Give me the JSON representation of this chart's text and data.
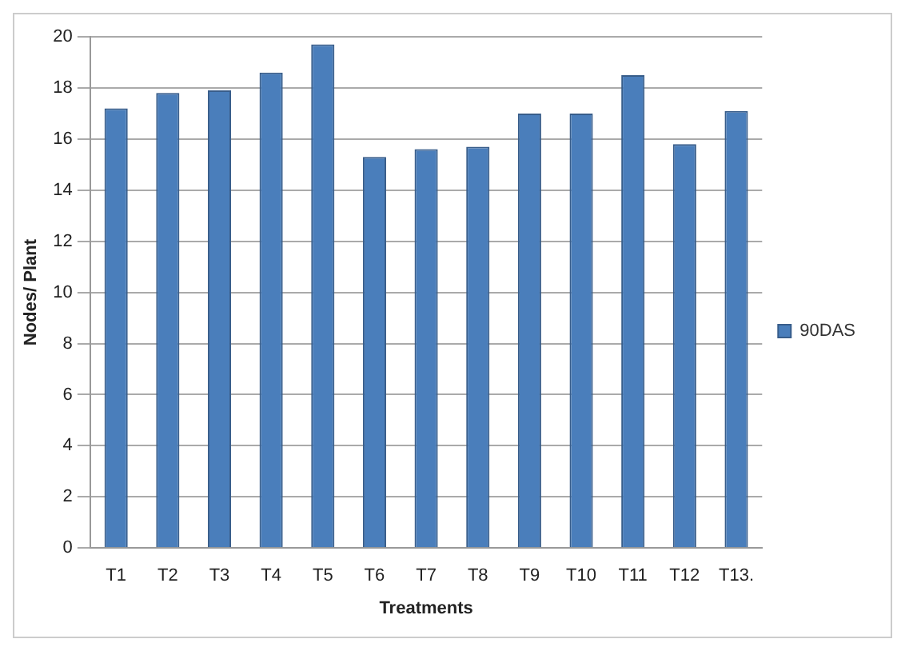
{
  "chart_data": {
    "type": "bar",
    "xlabel": "Treatments",
    "ylabel": "Nodes/ Plant",
    "categories": [
      "T1",
      "T2",
      "T3",
      "T4",
      "T5",
      "T6",
      "T7",
      "T8",
      "T9",
      "T10",
      "T11",
      "T12",
      "T13."
    ],
    "series": [
      {
        "name": "90DAS",
        "color": "#4a7ebb",
        "values": [
          17.2,
          17.8,
          17.9,
          18.6,
          19.7,
          15.3,
          15.6,
          15.7,
          17.0,
          17.0,
          18.5,
          15.8,
          17.1
        ]
      }
    ],
    "ylim": [
      0,
      20
    ],
    "yticks": [
      0,
      2,
      4,
      6,
      8,
      10,
      12,
      14,
      16,
      18,
      20
    ],
    "grid": "y",
    "legend": "right"
  }
}
